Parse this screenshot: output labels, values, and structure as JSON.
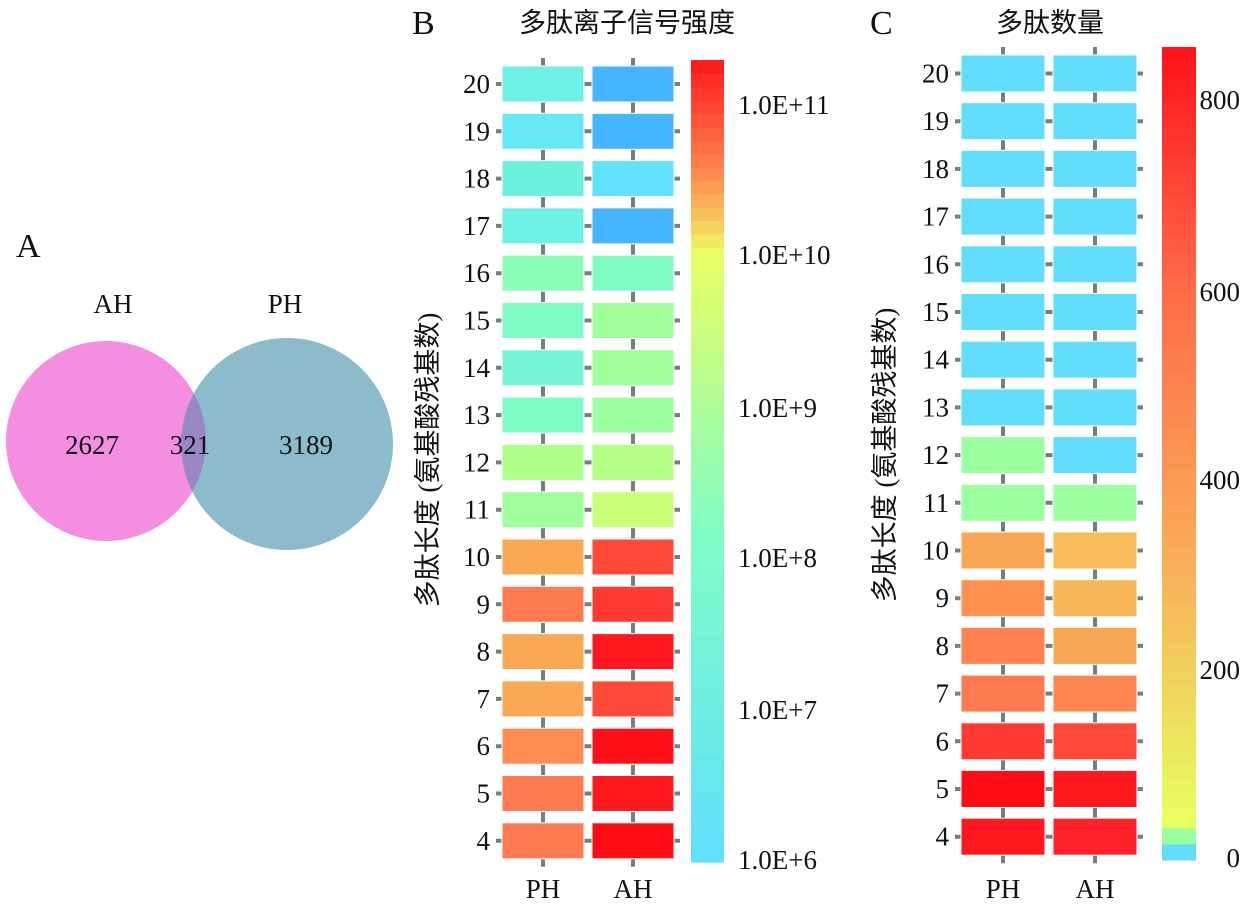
{
  "chart_data": [
    {
      "panel": "A",
      "type": "venn",
      "sets": [
        {
          "name": "AH",
          "only": 2627,
          "color": "#f48ee0"
        },
        {
          "name": "PH",
          "only": 3189,
          "color": "#8cbccc"
        }
      ],
      "intersection": 321,
      "intersection_color": "#9a88c4"
    },
    {
      "panel": "B",
      "type": "heatmap",
      "title": "多肽离子信号强度",
      "ylabel": "多肽长度 (氨基酸残基数)",
      "xlabel": "",
      "x": [
        "PH",
        "AH"
      ],
      "y": [
        20,
        19,
        18,
        17,
        16,
        15,
        14,
        13,
        12,
        11,
        10,
        9,
        8,
        7,
        6,
        5,
        4
      ],
      "scale": "log10",
      "colorbar": {
        "range": [
          1000000.0,
          100000000000.0
        ],
        "ticks": [
          "1.0E+11",
          "1.0E+10",
          "1.0E+9",
          "1.0E+8",
          "1.0E+7",
          "1.0E+6"
        ],
        "tick_values_log10": [
          11,
          10,
          9,
          8,
          7,
          6
        ]
      },
      "values_log10": [
        [
          6.9,
          5.8
        ],
        [
          6.7,
          5.8
        ],
        [
          6.9,
          6.6
        ],
        [
          6.9,
          5.8
        ],
        [
          7.9,
          7.6
        ],
        [
          7.6,
          8.4
        ],
        [
          7.3,
          8.4
        ],
        [
          7.6,
          8.3
        ],
        [
          8.7,
          8.8
        ],
        [
          8.4,
          9.3
        ],
        [
          10.4,
          10.9
        ],
        [
          10.7,
          11.0
        ],
        [
          10.4,
          11.2
        ],
        [
          10.4,
          10.9
        ],
        [
          10.6,
          11.3
        ],
        [
          10.7,
          11.2
        ],
        [
          10.7,
          11.3
        ]
      ],
      "colors": [
        [
          "#6ff0e4",
          "#45b5ff"
        ],
        [
          "#66e8f5",
          "#45b5ff"
        ],
        [
          "#6ef0df",
          "#62e2fc"
        ],
        [
          "#6ef0e4",
          "#45b5ff"
        ],
        [
          "#8cfdb8",
          "#80fdc6"
        ],
        [
          "#80fdc6",
          "#a0ff9a"
        ],
        [
          "#76f5d6",
          "#a0ff9a"
        ],
        [
          "#80fdc6",
          "#9cffa0"
        ],
        [
          "#b0ff8a",
          "#b6ff86"
        ],
        [
          "#a0ff9a",
          "#caff78"
        ],
        [
          "#fba855",
          "#ff4a3a"
        ],
        [
          "#ff7a50",
          "#ff3a32"
        ],
        [
          "#fba855",
          "#ff1720"
        ],
        [
          "#fba855",
          "#ff4a3a"
        ],
        [
          "#ff8c50",
          "#ff1018"
        ],
        [
          "#ff7a50",
          "#ff1a20"
        ],
        [
          "#ff7a50",
          "#ff0c14"
        ]
      ]
    },
    {
      "panel": "C",
      "type": "heatmap",
      "title": "多肽数量",
      "ylabel": "多肽长度 (氨基酸残基数)",
      "x": [
        "PH",
        "AH"
      ],
      "y": [
        20,
        19,
        18,
        17,
        16,
        15,
        14,
        13,
        12,
        11,
        10,
        9,
        8,
        7,
        6,
        5,
        4
      ],
      "colorbar": {
        "range": [
          0,
          860
        ],
        "ticks": [
          "800",
          "600",
          "400",
          "200",
          "0"
        ],
        "tick_values": [
          800,
          600,
          400,
          200,
          0
        ]
      },
      "values": [
        [
          2,
          2
        ],
        [
          3,
          3
        ],
        [
          3,
          3
        ],
        [
          4,
          4
        ],
        [
          5,
          5
        ],
        [
          6,
          6
        ],
        [
          7,
          7
        ],
        [
          8,
          8
        ],
        [
          20,
          8
        ],
        [
          20,
          20
        ],
        [
          250,
          230
        ],
        [
          320,
          240
        ],
        [
          350,
          270
        ],
        [
          380,
          350
        ],
        [
          600,
          560
        ],
        [
          820,
          780
        ],
        [
          780,
          750
        ]
      ],
      "colors": [
        [
          "#62defc",
          "#62defc"
        ],
        [
          "#62defc",
          "#62defc"
        ],
        [
          "#62defc",
          "#62defc"
        ],
        [
          "#62defc",
          "#62defc"
        ],
        [
          "#62defc",
          "#62defc"
        ],
        [
          "#62defc",
          "#62defc"
        ],
        [
          "#62defc",
          "#62defc"
        ],
        [
          "#62defc",
          "#62defc"
        ],
        [
          "#9cffa0",
          "#62defc"
        ],
        [
          "#9cffa0",
          "#9cffa0"
        ],
        [
          "#f8a855",
          "#f8bc5a"
        ],
        [
          "#ff9050",
          "#f8b85a"
        ],
        [
          "#ff8250",
          "#f8a855"
        ],
        [
          "#ff7a50",
          "#ff8650"
        ],
        [
          "#ff3a32",
          "#ff4a3a"
        ],
        [
          "#ff0c14",
          "#ff1820"
        ],
        [
          "#ff1820",
          "#ff2228"
        ]
      ]
    }
  ],
  "panel_labels": {
    "a": "A",
    "b": "B",
    "c": "C"
  }
}
